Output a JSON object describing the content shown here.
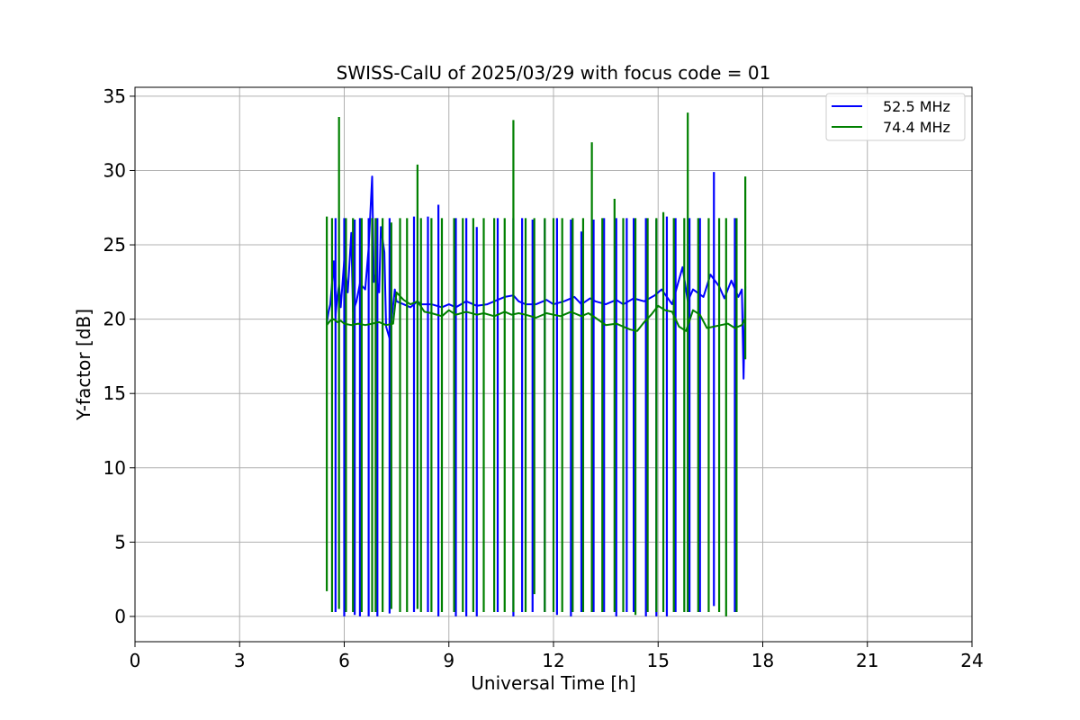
{
  "chart_data": {
    "type": "line",
    "title": "SWISS-CalU of 2025/03/29 with focus code = 01",
    "xlabel": "Universal Time [h]",
    "ylabel": "Y-factor [dB]",
    "xlim": [
      0,
      24
    ],
    "ylim": [
      -1.7,
      35.6
    ],
    "xticks": [
      0,
      3,
      6,
      9,
      12,
      15,
      18,
      21,
      24
    ],
    "yticks": [
      0,
      5,
      10,
      15,
      20,
      25,
      30,
      35
    ],
    "grid": true,
    "legend_position": "top-right",
    "series": [
      {
        "name": "52.5 MHz",
        "color": "#0000ff",
        "x": [
          5.5,
          5.55,
          5.6,
          5.7,
          5.75,
          5.8,
          5.85,
          5.9,
          6.0,
          6.1,
          6.2,
          6.25,
          6.35,
          6.45,
          6.6,
          6.7,
          6.8,
          6.85,
          6.9,
          7.0,
          7.05,
          7.15,
          7.2,
          7.3,
          7.45,
          7.5,
          7.7,
          7.9,
          8.1,
          8.2,
          8.5,
          8.8,
          9.0,
          9.2,
          9.5,
          9.8,
          10.1,
          10.3,
          10.6,
          10.85,
          11.0,
          11.2,
          11.5,
          11.8,
          12.0,
          12.3,
          12.6,
          12.8,
          13.05,
          13.2,
          13.5,
          13.8,
          14.0,
          14.3,
          14.6,
          14.9,
          15.1,
          15.4,
          15.7,
          15.85,
          16.0,
          16.3,
          16.5,
          16.75,
          16.9,
          17.1,
          17.3,
          17.4,
          17.45,
          17.5
        ],
        "y": [
          19.7,
          20.5,
          21.0,
          23.9,
          20.2,
          21.5,
          22.3,
          20.8,
          24.0,
          21.8,
          25.8,
          20.5,
          21.2,
          22.4,
          22.0,
          24.8,
          29.6,
          22.5,
          23.0,
          21.8,
          26.2,
          24.5,
          19.5,
          18.7,
          22.0,
          21.2,
          21.0,
          20.8,
          21.2,
          21.0,
          21.0,
          20.8,
          21.0,
          20.8,
          21.2,
          20.9,
          21.0,
          21.2,
          21.5,
          21.6,
          21.2,
          21.0,
          21.0,
          21.3,
          21.0,
          21.2,
          21.5,
          21.0,
          21.4,
          21.2,
          21.0,
          21.3,
          21.0,
          21.4,
          21.2,
          21.6,
          22.0,
          21.0,
          23.5,
          21.2,
          22.0,
          21.5,
          23.0,
          22.2,
          21.4,
          22.6,
          21.5,
          22.0,
          16.0,
          22.2
        ],
        "spike_times": [
          5.75,
          6.0,
          6.3,
          6.45,
          6.7,
          6.95,
          7.3,
          8.0,
          8.4,
          8.7,
          9.2,
          9.5,
          9.8,
          10.4,
          10.85,
          11.1,
          11.4,
          11.75,
          12.1,
          12.5,
          12.8,
          13.15,
          13.45,
          13.8,
          14.1,
          14.3,
          14.65,
          14.95,
          15.25,
          15.5,
          15.9,
          16.2,
          16.6,
          17.2
        ],
        "spike_low": [
          0.3,
          0.0,
          0.1,
          0.0,
          0.0,
          0.0,
          0.2,
          0.3,
          0.3,
          0.0,
          0.0,
          0.0,
          0.0,
          0.3,
          0.0,
          0.3,
          0.3,
          0.3,
          0.1,
          0.0,
          0.3,
          0.3,
          0.3,
          0.0,
          0.3,
          0.3,
          0.0,
          0.0,
          0.0,
          0.3,
          0.3,
          0.3,
          0.7,
          0.3
        ],
        "spike_high": [
          26.8,
          26.8,
          26.7,
          26.8,
          26.8,
          26.8,
          26.8,
          26.9,
          26.9,
          27.7,
          26.8,
          26.8,
          26.2,
          26.8,
          26.8,
          26.8,
          26.7,
          26.7,
          26.8,
          26.7,
          25.9,
          26.7,
          26.8,
          26.8,
          26.8,
          26.8,
          26.8,
          26.7,
          26.9,
          26.8,
          26.8,
          26.8,
          29.9,
          26.8
        ]
      },
      {
        "name": "74.4 MHz",
        "color": "#008000",
        "x": [
          5.5,
          5.6,
          5.7,
          5.8,
          5.9,
          6.0,
          6.2,
          6.4,
          6.6,
          6.8,
          7.0,
          7.2,
          7.4,
          7.5,
          7.7,
          7.9,
          8.1,
          8.3,
          8.5,
          8.8,
          9.0,
          9.2,
          9.5,
          9.8,
          10.0,
          10.3,
          10.6,
          10.8,
          11.0,
          11.2,
          11.5,
          11.8,
          12.0,
          12.2,
          12.5,
          12.8,
          13.0,
          13.2,
          13.5,
          13.8,
          14.0,
          14.2,
          14.4,
          14.6,
          14.8,
          15.0,
          15.2,
          15.4,
          15.6,
          15.8,
          16.0,
          16.2,
          16.4,
          16.6,
          16.8,
          17.0,
          17.2,
          17.4,
          17.5
        ],
        "y": [
          19.6,
          19.9,
          20.0,
          19.8,
          19.9,
          19.7,
          19.6,
          19.7,
          19.6,
          19.7,
          19.8,
          19.6,
          19.7,
          21.8,
          21.3,
          21.0,
          21.2,
          20.5,
          20.4,
          20.2,
          20.6,
          20.3,
          20.5,
          20.3,
          20.4,
          20.2,
          20.5,
          20.3,
          20.4,
          20.3,
          20.1,
          20.4,
          20.3,
          20.2,
          20.5,
          20.2,
          20.4,
          20.1,
          19.6,
          19.7,
          19.5,
          19.3,
          19.2,
          19.8,
          20.3,
          20.9,
          20.6,
          20.5,
          19.5,
          19.2,
          20.6,
          20.3,
          19.4,
          19.5,
          19.6,
          19.7,
          19.4,
          19.6,
          20.1
        ],
        "spike_times": [
          5.5,
          5.65,
          5.85,
          6.05,
          6.25,
          6.5,
          6.8,
          6.9,
          7.1,
          7.35,
          7.6,
          7.8,
          8.1,
          8.2,
          8.5,
          8.8,
          9.15,
          9.4,
          9.7,
          10.0,
          10.3,
          10.6,
          10.85,
          11.2,
          11.45,
          11.75,
          12.0,
          12.25,
          12.55,
          12.85,
          13.1,
          13.4,
          13.75,
          14.0,
          14.35,
          14.7,
          14.95,
          15.15,
          15.45,
          15.75,
          15.85,
          16.15,
          16.45,
          16.75,
          16.95,
          17.25,
          17.5
        ],
        "spike_low": [
          1.7,
          0.3,
          0.5,
          0.3,
          0.3,
          0.3,
          0.3,
          0.3,
          0.3,
          0.5,
          0.3,
          0.3,
          0.5,
          0.3,
          0.3,
          0.3,
          0.3,
          0.3,
          0.3,
          0.3,
          0.3,
          0.3,
          0.3,
          0.3,
          1.5,
          0.3,
          0.3,
          0.3,
          0.3,
          0.3,
          0.3,
          0.3,
          0.3,
          0.3,
          0.1,
          0.3,
          0.3,
          0.3,
          0.3,
          0.3,
          0.3,
          0.3,
          0.3,
          0.3,
          0.0,
          0.3,
          17.3
        ],
        "spike_high": [
          26.9,
          26.8,
          33.6,
          26.8,
          26.8,
          26.8,
          26.8,
          26.8,
          26.8,
          26.5,
          26.8,
          26.8,
          30.4,
          26.8,
          26.8,
          26.8,
          26.8,
          26.8,
          26.8,
          26.8,
          26.8,
          26.8,
          33.4,
          26.8,
          26.8,
          26.8,
          26.8,
          26.8,
          26.8,
          26.8,
          31.9,
          26.8,
          28.1,
          26.8,
          26.8,
          26.8,
          26.8,
          27.2,
          26.8,
          26.8,
          33.9,
          26.8,
          26.8,
          26.8,
          26.8,
          26.8,
          29.6
        ]
      }
    ]
  }
}
